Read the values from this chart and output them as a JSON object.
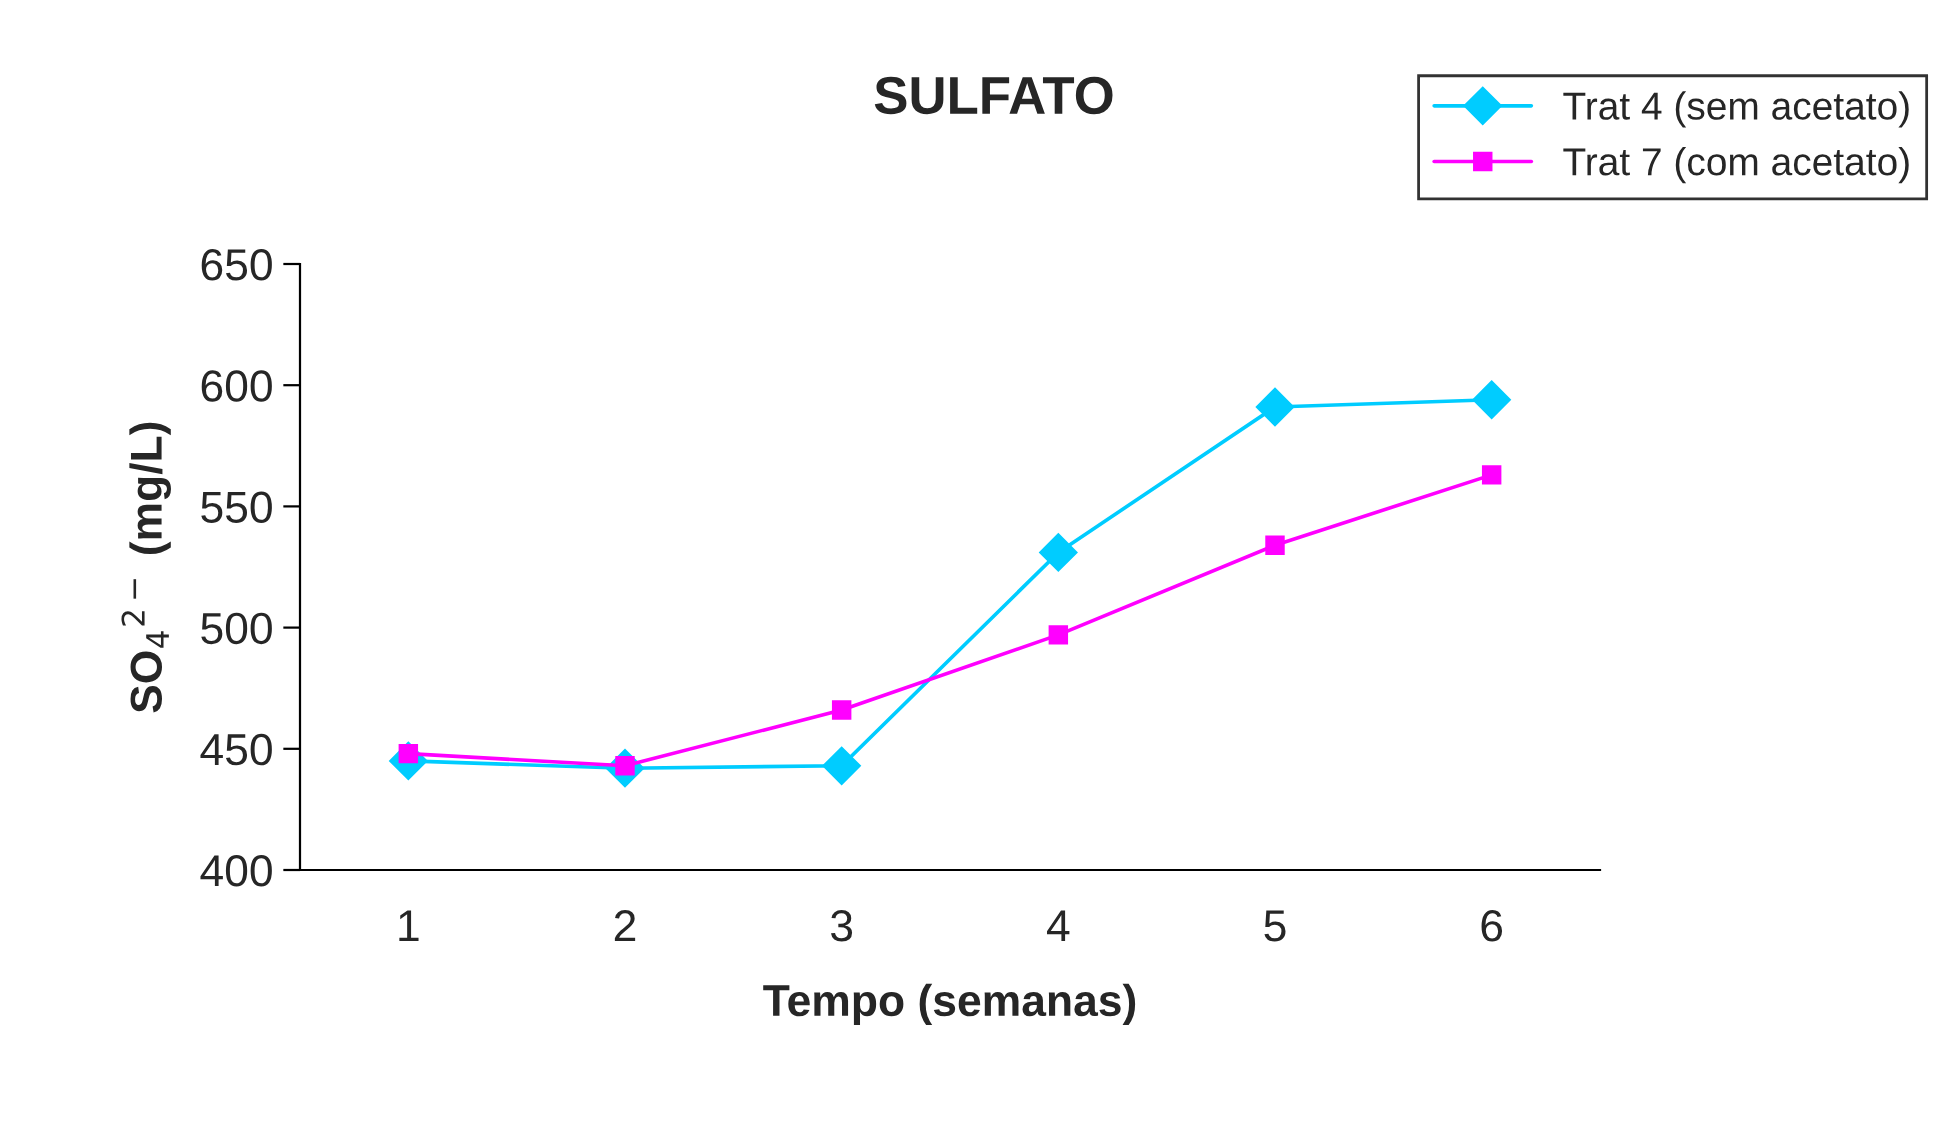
{
  "chart_data": {
    "type": "line",
    "title": "SULFATO",
    "xlabel": "Tempo (semanas)",
    "ylabel": "SO$_{4}$$^{2−}$ (mg/L)",
    "categories": [
      "1",
      "2",
      "3",
      "4",
      "5",
      "6"
    ],
    "series": [
      {
        "name": "Trat 4 (sem acetato)",
        "color": "#00ccff",
        "marker": "diamond",
        "values": [
          445,
          442,
          443,
          531,
          591,
          594
        ]
      },
      {
        "name": "Trat 7 (com acetato)",
        "color": "#ff00ff",
        "marker": "square",
        "values": [
          448,
          443,
          466,
          497,
          534,
          563
        ]
      }
    ],
    "ylim": [
      400,
      650
    ],
    "yticks": [
      400,
      450,
      500,
      550,
      600,
      650
    ],
    "grid": false,
    "legend": "top right",
    "line_style": "solid"
  }
}
